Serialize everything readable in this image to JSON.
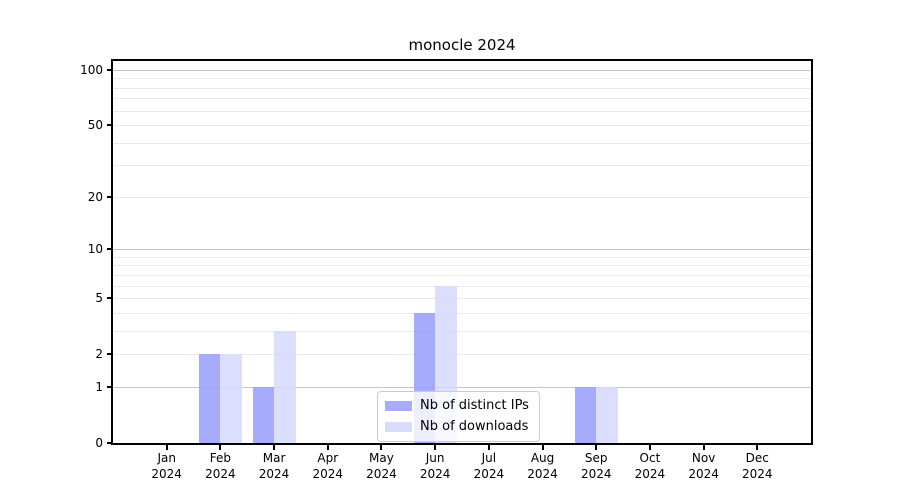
{
  "chart_data": {
    "type": "bar",
    "title": "monocle 2024",
    "categories": [
      "Jan",
      "Feb",
      "Mar",
      "Apr",
      "May",
      "Jun",
      "Jul",
      "Aug",
      "Sep",
      "Oct",
      "Nov",
      "Dec"
    ],
    "x_year_label": "2024",
    "series": [
      {
        "name": "Nb of distinct IPs",
        "color": "#a8acf8",
        "bar_fill": "rgba(151,156,250,0.85)",
        "values": [
          0,
          2,
          1,
          0,
          0,
          4,
          0,
          0,
          1,
          0,
          0,
          0
        ]
      },
      {
        "name": "Nb of downloads",
        "color": "#d9dcf9",
        "bar_fill": "rgba(213,216,252,0.85)",
        "values": [
          0,
          2,
          3,
          0,
          0,
          6,
          0,
          0,
          1,
          0,
          0,
          0
        ]
      }
    ],
    "yscale": "log1p",
    "ylim": [
      0,
      112
    ],
    "y_tick_values": [
      0,
      1,
      2,
      5,
      10,
      20,
      50,
      100
    ],
    "y_major_gridlines": [
      1,
      10,
      100
    ],
    "y_minor_gridlines": [
      2,
      3,
      4,
      5,
      6,
      7,
      8,
      9,
      20,
      30,
      40,
      50,
      60,
      70,
      80,
      90
    ],
    "grid": "horizontal",
    "legend_position": "lower-center"
  },
  "colors": {
    "grid_major": "#c6c6c6",
    "grid_minor": "#e9e9e9",
    "spine": "#000000",
    "background": "#ffffff",
    "legend_border": "#cccccc",
    "text": "#000000"
  }
}
